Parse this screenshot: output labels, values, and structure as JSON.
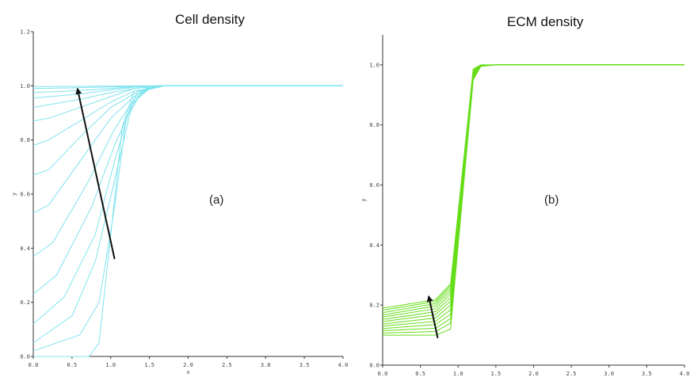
{
  "chart_data": [
    {
      "type": "line",
      "title": "Cell density",
      "panel_label": "(a)",
      "xlabel": "x",
      "ylabel": "y",
      "xlim": [
        0,
        4
      ],
      "ylim": [
        0,
        1.2
      ],
      "x_ticks": [
        "0.0",
        "0.5",
        "1.0",
        "1.5",
        "2.0",
        "2.5",
        "3.0",
        "3.5",
        "4.0"
      ],
      "y_ticks": [
        "0.0",
        "0.2",
        "0.4",
        "0.6",
        "0.8",
        "1.0",
        "1.2"
      ],
      "line_color": "#7fe3ee",
      "arrow_color": "#111111",
      "arrow_from": {
        "x": 1.05,
        "y": 0.36
      },
      "arrow_to": {
        "x": 0.57,
        "y": 0.99
      },
      "series": [
        {
          "points": [
            [
              0,
              0.0
            ],
            [
              0.72,
              0.0
            ],
            [
              0.85,
              0.05
            ],
            [
              1.0,
              0.45
            ],
            [
              1.15,
              0.85
            ],
            [
              1.3,
              0.98
            ],
            [
              1.7,
              1.0
            ],
            [
              4.0,
              1.0
            ]
          ]
        },
        {
          "points": [
            [
              0,
              0.02
            ],
            [
              0.6,
              0.08
            ],
            [
              0.85,
              0.2
            ],
            [
              1.05,
              0.55
            ],
            [
              1.2,
              0.88
            ],
            [
              1.35,
              0.98
            ],
            [
              1.7,
              1.0
            ],
            [
              4.0,
              1.0
            ]
          ]
        },
        {
          "points": [
            [
              0,
              0.05
            ],
            [
              0.5,
              0.15
            ],
            [
              0.8,
              0.35
            ],
            [
              1.05,
              0.65
            ],
            [
              1.25,
              0.9
            ],
            [
              1.4,
              0.98
            ],
            [
              1.7,
              1.0
            ],
            [
              4.0,
              1.0
            ]
          ]
        },
        {
          "points": [
            [
              0,
              0.12
            ],
            [
              0.4,
              0.22
            ],
            [
              0.8,
              0.45
            ],
            [
              1.05,
              0.72
            ],
            [
              1.25,
              0.92
            ],
            [
              1.45,
              0.99
            ],
            [
              1.7,
              1.0
            ],
            [
              4.0,
              1.0
            ]
          ]
        },
        {
          "points": [
            [
              0,
              0.23
            ],
            [
              0.3,
              0.3
            ],
            [
              0.75,
              0.55
            ],
            [
              1.05,
              0.78
            ],
            [
              1.3,
              0.94
            ],
            [
              1.5,
              0.99
            ],
            [
              1.7,
              1.0
            ],
            [
              4.0,
              1.0
            ]
          ]
        },
        {
          "points": [
            [
              0,
              0.37
            ],
            [
              0.25,
              0.42
            ],
            [
              0.7,
              0.64
            ],
            [
              1.05,
              0.84
            ],
            [
              1.3,
              0.95
            ],
            [
              1.5,
              0.99
            ],
            [
              1.7,
              1.0
            ],
            [
              4.0,
              1.0
            ]
          ]
        },
        {
          "points": [
            [
              0,
              0.53
            ],
            [
              0.2,
              0.56
            ],
            [
              0.65,
              0.74
            ],
            [
              1.0,
              0.88
            ],
            [
              1.3,
              0.96
            ],
            [
              1.5,
              0.99
            ],
            [
              1.7,
              1.0
            ],
            [
              4.0,
              1.0
            ]
          ]
        },
        {
          "points": [
            [
              0,
              0.67
            ],
            [
              0.2,
              0.69
            ],
            [
              0.6,
              0.81
            ],
            [
              1.0,
              0.92
            ],
            [
              1.3,
              0.97
            ],
            [
              1.5,
              0.99
            ],
            [
              1.7,
              1.0
            ],
            [
              4.0,
              1.0
            ]
          ]
        },
        {
          "points": [
            [
              0,
              0.78
            ],
            [
              0.2,
              0.8
            ],
            [
              0.6,
              0.87
            ],
            [
              1.0,
              0.94
            ],
            [
              1.3,
              0.98
            ],
            [
              1.7,
              1.0
            ],
            [
              4.0,
              1.0
            ]
          ]
        },
        {
          "points": [
            [
              0,
              0.87
            ],
            [
              0.2,
              0.88
            ],
            [
              0.6,
              0.92
            ],
            [
              1.0,
              0.96
            ],
            [
              1.3,
              0.99
            ],
            [
              1.7,
              1.0
            ],
            [
              4.0,
              1.0
            ]
          ]
        },
        {
          "points": [
            [
              0,
              0.92
            ],
            [
              0.2,
              0.93
            ],
            [
              0.6,
              0.95
            ],
            [
              1.0,
              0.975
            ],
            [
              1.3,
              0.99
            ],
            [
              1.7,
              1.0
            ],
            [
              4.0,
              1.0
            ]
          ]
        },
        {
          "points": [
            [
              0,
              0.955
            ],
            [
              0.6,
              0.97
            ],
            [
              1.0,
              0.985
            ],
            [
              1.3,
              0.995
            ],
            [
              1.7,
              1.0
            ],
            [
              4.0,
              1.0
            ]
          ]
        },
        {
          "points": [
            [
              0,
              0.975
            ],
            [
              0.6,
              0.983
            ],
            [
              1.0,
              0.99
            ],
            [
              1.3,
              0.997
            ],
            [
              1.7,
              1.0
            ],
            [
              4.0,
              1.0
            ]
          ]
        },
        {
          "points": [
            [
              0,
              0.99
            ],
            [
              0.6,
              0.993
            ],
            [
              1.0,
              0.996
            ],
            [
              1.7,
              1.0
            ],
            [
              4.0,
              1.0
            ]
          ]
        },
        {
          "points": [
            [
              0,
              0.997
            ],
            [
              1.0,
              0.999
            ],
            [
              1.7,
              1.0
            ],
            [
              4.0,
              1.0
            ]
          ]
        }
      ]
    },
    {
      "type": "line",
      "title": "ECM density",
      "panel_label": "(b)",
      "xlabel": "",
      "ylabel": "y",
      "xlim": [
        0,
        4
      ],
      "ylim": [
        0,
        1.1
      ],
      "x_ticks": [
        "0.0",
        "0.5",
        "1.0",
        "1.5",
        "2.0",
        "2.5",
        "3.0",
        "3.5",
        "4.0"
      ],
      "y_ticks": [
        "0.0",
        "0.2",
        "0.4",
        "0.6",
        "0.8",
        "1.0"
      ],
      "line_color": "#66dd1a",
      "arrow_color": "#111111",
      "arrow_from": {
        "x": 0.73,
        "y": 0.09
      },
      "arrow_to": {
        "x": 0.61,
        "y": 0.23
      },
      "series": [
        {
          "points": [
            [
              0,
              0.1
            ],
            [
              0.7,
              0.1
            ],
            [
              0.9,
              0.12
            ],
            [
              1.2,
              0.95
            ],
            [
              1.3,
              0.995
            ],
            [
              1.5,
              1.0
            ],
            [
              4.0,
              1.0
            ]
          ]
        },
        {
          "points": [
            [
              0,
              0.107
            ],
            [
              0.7,
              0.112
            ],
            [
              0.9,
              0.14
            ],
            [
              1.2,
              0.953
            ],
            [
              1.3,
              0.995
            ],
            [
              1.5,
              1.0
            ],
            [
              4.0,
              1.0
            ]
          ]
        },
        {
          "points": [
            [
              0,
              0.115
            ],
            [
              0.7,
              0.123
            ],
            [
              0.9,
              0.155
            ],
            [
              1.2,
              0.956
            ],
            [
              1.3,
              0.996
            ],
            [
              1.5,
              1.0
            ],
            [
              4.0,
              1.0
            ]
          ]
        },
        {
          "points": [
            [
              0,
              0.122
            ],
            [
              0.7,
              0.135
            ],
            [
              0.9,
              0.17
            ],
            [
              1.2,
              0.959
            ],
            [
              1.3,
              0.996
            ],
            [
              1.5,
              1.0
            ],
            [
              4.0,
              1.0
            ]
          ]
        },
        {
          "points": [
            [
              0,
              0.13
            ],
            [
              0.7,
              0.146
            ],
            [
              0.9,
              0.185
            ],
            [
              1.2,
              0.962
            ],
            [
              1.3,
              0.997
            ],
            [
              1.5,
              1.0
            ],
            [
              4.0,
              1.0
            ]
          ]
        },
        {
          "points": [
            [
              0,
              0.137
            ],
            [
              0.7,
              0.157
            ],
            [
              0.9,
              0.2
            ],
            [
              1.2,
              0.965
            ],
            [
              1.3,
              0.997
            ],
            [
              1.5,
              1.0
            ],
            [
              4.0,
              1.0
            ]
          ]
        },
        {
          "points": [
            [
              0,
              0.145
            ],
            [
              0.7,
              0.168
            ],
            [
              0.9,
              0.213
            ],
            [
              1.2,
              0.968
            ],
            [
              1.3,
              0.998
            ],
            [
              1.5,
              1.0
            ],
            [
              4.0,
              1.0
            ]
          ]
        },
        {
          "points": [
            [
              0,
              0.152
            ],
            [
              0.7,
              0.178
            ],
            [
              0.9,
              0.225
            ],
            [
              1.2,
              0.971
            ],
            [
              1.3,
              0.998
            ],
            [
              1.5,
              1.0
            ],
            [
              4.0,
              1.0
            ]
          ]
        },
        {
          "points": [
            [
              0,
              0.16
            ],
            [
              0.7,
              0.188
            ],
            [
              0.9,
              0.237
            ],
            [
              1.2,
              0.974
            ],
            [
              1.3,
              0.998
            ],
            [
              1.5,
              1.0
            ],
            [
              4.0,
              1.0
            ]
          ]
        },
        {
          "points": [
            [
              0,
              0.167
            ],
            [
              0.7,
              0.197
            ],
            [
              0.9,
              0.247
            ],
            [
              1.2,
              0.977
            ],
            [
              1.3,
              0.999
            ],
            [
              1.5,
              1.0
            ],
            [
              4.0,
              1.0
            ]
          ]
        },
        {
          "points": [
            [
              0,
              0.175
            ],
            [
              0.7,
              0.205
            ],
            [
              0.9,
              0.256
            ],
            [
              1.2,
              0.98
            ],
            [
              1.3,
              0.999
            ],
            [
              1.5,
              1.0
            ],
            [
              4.0,
              1.0
            ]
          ]
        },
        {
          "points": [
            [
              0,
              0.183
            ],
            [
              0.7,
              0.212
            ],
            [
              0.9,
              0.264
            ],
            [
              1.2,
              0.983
            ],
            [
              1.3,
              0.999
            ],
            [
              1.5,
              1.0
            ],
            [
              4.0,
              1.0
            ]
          ]
        },
        {
          "points": [
            [
              0,
              0.19
            ],
            [
              0.7,
              0.218
            ],
            [
              0.9,
              0.27
            ],
            [
              1.2,
              0.986
            ],
            [
              1.3,
              1.0
            ],
            [
              1.5,
              1.0
            ],
            [
              4.0,
              1.0
            ]
          ]
        }
      ]
    }
  ]
}
